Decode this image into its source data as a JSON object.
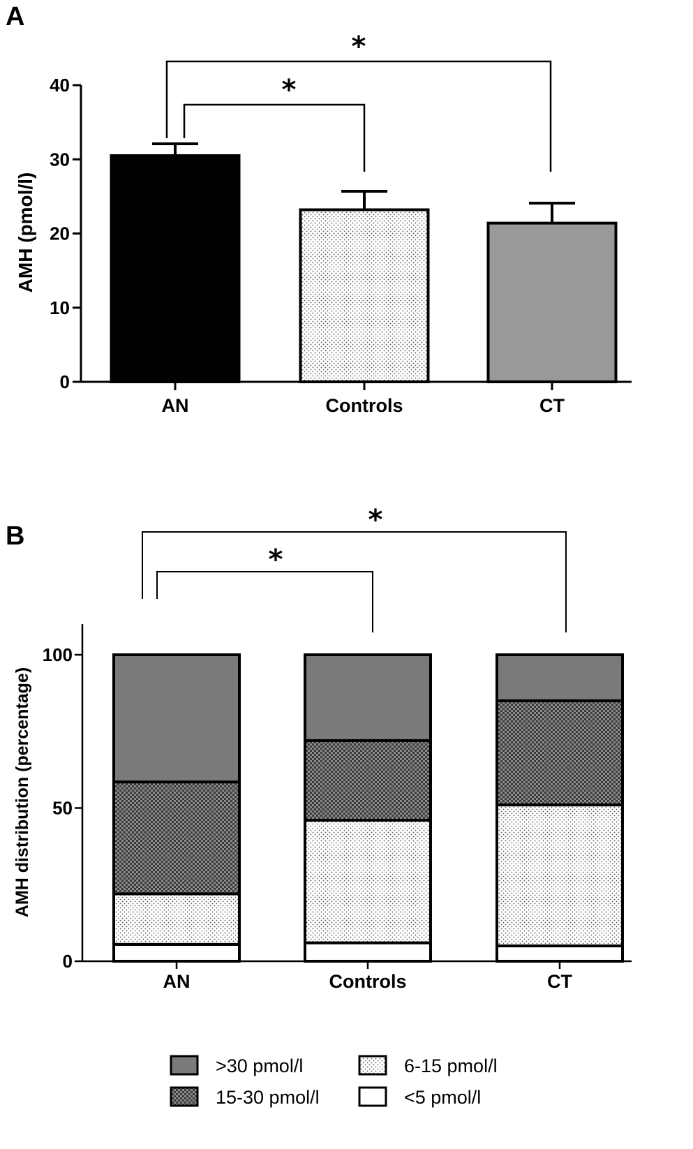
{
  "panels": {
    "a_letter": "A",
    "b_letter": "B"
  },
  "chart_data": [
    {
      "type": "bar",
      "panel": "A",
      "title": "",
      "xlabel": "",
      "ylabel": "AMH (pmol/l)",
      "ylim": [
        0,
        40
      ],
      "yticks": [
        0,
        10,
        20,
        30,
        40
      ],
      "categories": [
        "AN",
        "Controls",
        "CT"
      ],
      "values": [
        30.5,
        23.2,
        21.4
      ],
      "errors": [
        1.6,
        2.5,
        2.7
      ],
      "fills": [
        "solid-black",
        "dotted",
        "solid-gray"
      ],
      "colors": {
        "AN": "#000000",
        "Controls": "#ffffff",
        "CT": "#999999"
      },
      "significance": [
        {
          "from": "AN",
          "to": "Controls",
          "label": "*"
        },
        {
          "from": "AN",
          "to": "CT",
          "label": "*"
        }
      ]
    },
    {
      "type": "bar",
      "stacked": true,
      "panel": "B",
      "title": "",
      "xlabel": "",
      "ylabel": "AMH distribution (percentage)",
      "ylim": [
        0,
        110
      ],
      "yticks": [
        0,
        50,
        100
      ],
      "categories": [
        "AN",
        "Controls",
        "CT"
      ],
      "series": [
        {
          "name": "<5 pmol/l",
          "values": [
            5.5,
            6,
            5
          ],
          "color": "#ffffff",
          "pattern": "none"
        },
        {
          "name": "6-15 pmol/l",
          "values": [
            16.5,
            40,
            46
          ],
          "color": "#ffffff",
          "pattern": "dots"
        },
        {
          "name": "15-30 pmol/l",
          "values": [
            36.5,
            26,
            34
          ],
          "color": "#8c8c8c",
          "pattern": "crosshatch"
        },
        {
          "name": ">30 pmol/l",
          "values": [
            41.5,
            28,
            15
          ],
          "color": "#7a7a7a",
          "pattern": "none"
        }
      ],
      "significance": [
        {
          "from": "AN",
          "to": "Controls",
          "label": "*"
        },
        {
          "from": "AN",
          "to": "CT",
          "label": "*"
        }
      ],
      "legend": {
        "placement": "bottom",
        "items": [
          ">30 pmol/l",
          "15-30 pmol/l",
          "6-15 pmol/l",
          "<5 pmol/l"
        ]
      }
    }
  ]
}
